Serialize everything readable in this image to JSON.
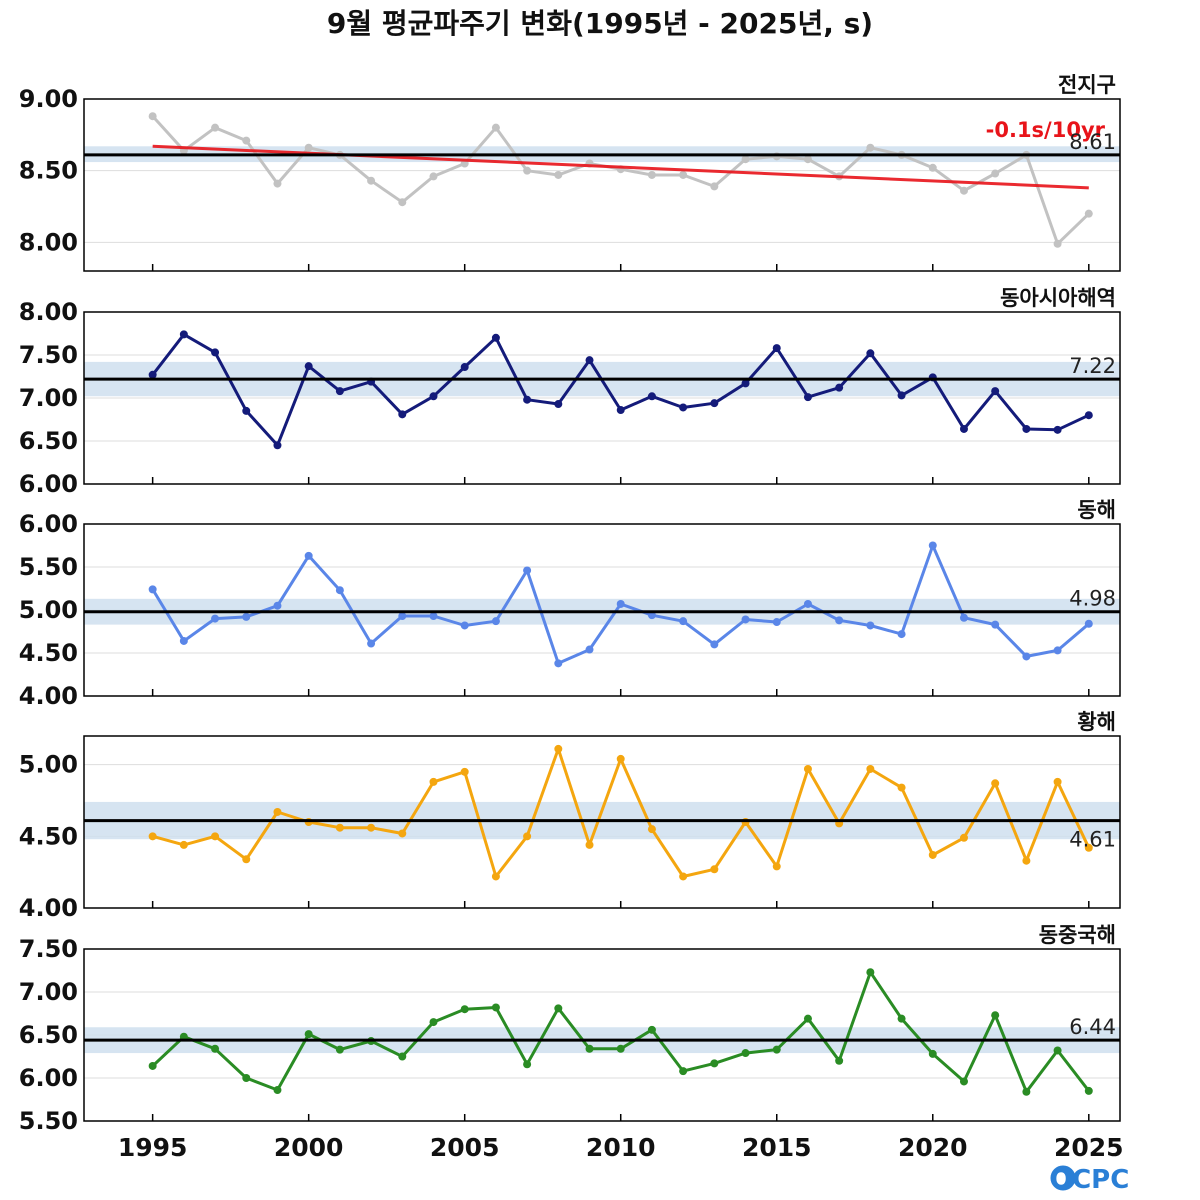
{
  "title": "9월 평균파주기 변화(1995년 - 2025년, s)",
  "logo_text": "OCPC",
  "colors": {
    "mean_band": "#cfdfee",
    "mean_line": "#000000",
    "trend": "#e8141a",
    "grid": "#dddddd"
  },
  "chart_data": [
    {
      "type": "line",
      "region": "전지구",
      "x": [
        1995,
        1996,
        1997,
        1998,
        1999,
        2000,
        2001,
        2002,
        2003,
        2004,
        2005,
        2006,
        2007,
        2008,
        2009,
        2010,
        2011,
        2012,
        2013,
        2014,
        2015,
        2016,
        2017,
        2018,
        2019,
        2020,
        2021,
        2022,
        2023,
        2024,
        2025
      ],
      "values": [
        8.88,
        8.64,
        8.8,
        8.71,
        8.41,
        8.66,
        8.61,
        8.43,
        8.28,
        8.46,
        8.55,
        8.8,
        8.5,
        8.47,
        8.55,
        8.51,
        8.47,
        8.47,
        8.39,
        8.58,
        8.6,
        8.58,
        8.46,
        8.66,
        8.61,
        8.52,
        8.36,
        8.48,
        8.61,
        7.99,
        8.2
      ],
      "color": "#c2c2c2",
      "mean": 8.61,
      "mean_label": "8.61",
      "band": [
        8.56,
        8.67
      ],
      "ylim": [
        7.8,
        9.0
      ],
      "yticks": [
        8.0,
        8.5,
        9.0
      ],
      "ytick_labels": [
        "8.00",
        "8.50",
        "9.00"
      ],
      "trend": {
        "label": "-0.1s/10yr",
        "start": [
          1995,
          8.67
        ],
        "end": [
          2025,
          8.38
        ]
      }
    },
    {
      "type": "line",
      "region": "동아시아해역",
      "x": [
        1995,
        1996,
        1997,
        1998,
        1999,
        2000,
        2001,
        2002,
        2003,
        2004,
        2005,
        2006,
        2007,
        2008,
        2009,
        2010,
        2011,
        2012,
        2013,
        2014,
        2015,
        2016,
        2017,
        2018,
        2019,
        2020,
        2021,
        2022,
        2023,
        2024,
        2025
      ],
      "values": [
        7.27,
        7.74,
        7.53,
        6.85,
        6.45,
        7.37,
        7.08,
        7.19,
        6.81,
        7.02,
        7.36,
        7.7,
        6.98,
        6.93,
        7.44,
        6.86,
        7.02,
        6.89,
        6.94,
        7.17,
        7.58,
        7.01,
        7.12,
        7.52,
        7.03,
        7.24,
        6.64,
        7.08,
        6.64,
        6.63,
        6.8
      ],
      "color": "#141b7a",
      "mean": 7.22,
      "mean_label": "7.22",
      "band": [
        7.02,
        7.42
      ],
      "ylim": [
        6.0,
        8.0
      ],
      "yticks": [
        6.0,
        6.5,
        7.0,
        7.5,
        8.0
      ],
      "ytick_labels": [
        "6.00",
        "6.50",
        "7.00",
        "7.50",
        "8.00"
      ]
    },
    {
      "type": "line",
      "region": "동해",
      "x": [
        1995,
        1996,
        1997,
        1998,
        1999,
        2000,
        2001,
        2002,
        2003,
        2004,
        2005,
        2006,
        2007,
        2008,
        2009,
        2010,
        2011,
        2012,
        2013,
        2014,
        2015,
        2016,
        2017,
        2018,
        2019,
        2020,
        2021,
        2022,
        2023,
        2024,
        2025
      ],
      "values": [
        5.24,
        4.64,
        4.9,
        4.92,
        5.05,
        5.63,
        5.23,
        4.61,
        4.93,
        4.93,
        4.82,
        4.87,
        5.46,
        4.38,
        4.54,
        5.07,
        4.94,
        4.87,
        4.6,
        4.89,
        4.86,
        5.07,
        4.88,
        4.82,
        4.72,
        5.75,
        4.91,
        4.83,
        4.46,
        4.53,
        4.84
      ],
      "color": "#5a86e8",
      "mean": 4.98,
      "mean_label": "4.98",
      "band": [
        4.83,
        5.13
      ],
      "ylim": [
        4.0,
        6.0
      ],
      "yticks": [
        4.0,
        4.5,
        5.0,
        5.5,
        6.0
      ],
      "ytick_labels": [
        "4.00",
        "4.50",
        "5.00",
        "5.50",
        "6.00"
      ]
    },
    {
      "type": "line",
      "region": "황해",
      "x": [
        1995,
        1996,
        1997,
        1998,
        1999,
        2000,
        2001,
        2002,
        2003,
        2004,
        2005,
        2006,
        2007,
        2008,
        2009,
        2010,
        2011,
        2012,
        2013,
        2014,
        2015,
        2016,
        2017,
        2018,
        2019,
        2020,
        2021,
        2022,
        2023,
        2024,
        2025
      ],
      "values": [
        4.5,
        4.44,
        4.5,
        4.34,
        4.67,
        4.6,
        4.56,
        4.56,
        4.52,
        4.88,
        4.95,
        4.22,
        4.5,
        5.11,
        4.44,
        5.04,
        4.55,
        4.22,
        4.27,
        4.6,
        4.29,
        4.97,
        4.59,
        4.97,
        4.84,
        4.37,
        4.49,
        4.87,
        4.33,
        4.88,
        4.42
      ],
      "color": "#f4a60f",
      "mean": 4.61,
      "mean_label": "4.61",
      "band": [
        4.48,
        4.74
      ],
      "ylim": [
        4.0,
        5.2
      ],
      "yticks": [
        4.0,
        4.5,
        5.0
      ],
      "ytick_labels": [
        "4.00",
        "4.50",
        "5.00"
      ]
    },
    {
      "type": "line",
      "region": "동중국해",
      "x": [
        1995,
        1996,
        1997,
        1998,
        1999,
        2000,
        2001,
        2002,
        2003,
        2004,
        2005,
        2006,
        2007,
        2008,
        2009,
        2010,
        2011,
        2012,
        2013,
        2014,
        2015,
        2016,
        2017,
        2018,
        2019,
        2020,
        2021,
        2022,
        2023,
        2024,
        2025
      ],
      "values": [
        6.14,
        6.48,
        6.34,
        6.0,
        5.86,
        6.51,
        6.33,
        6.43,
        6.25,
        6.65,
        6.8,
        6.82,
        6.16,
        6.81,
        6.34,
        6.34,
        6.56,
        6.08,
        6.17,
        6.29,
        6.33,
        6.69,
        6.2,
        7.23,
        6.69,
        6.28,
        5.96,
        6.73,
        5.84,
        6.32,
        5.85
      ],
      "color": "#2a8c24",
      "mean": 6.44,
      "mean_label": "6.44",
      "band": [
        6.29,
        6.59
      ],
      "ylim": [
        5.5,
        7.5
      ],
      "yticks": [
        5.5,
        6.0,
        6.5,
        7.0,
        7.5
      ],
      "ytick_labels": [
        "5.50",
        "6.00",
        "6.50",
        "7.00",
        "7.50"
      ]
    }
  ],
  "x_axis": {
    "ticks": [
      1995,
      2000,
      2005,
      2010,
      2015,
      2020,
      2025
    ],
    "labels": [
      "1995",
      "2000",
      "2005",
      "2010",
      "2015",
      "2020",
      "2025"
    ],
    "xlim": [
      1992.8,
      2026.0
    ]
  }
}
